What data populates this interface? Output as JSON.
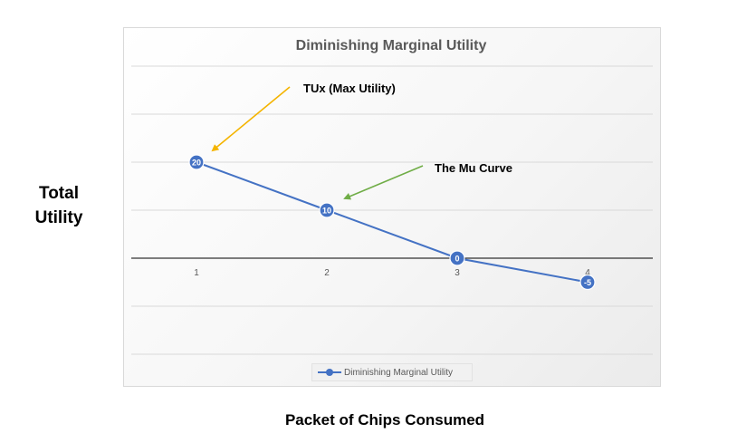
{
  "chart_data": {
    "type": "line",
    "title": "Diminishing Marginal Utility",
    "xlabel": "Packet of Chips Consumed",
    "ylabel": "Total Utility",
    "categories": [
      "1",
      "2",
      "3",
      "4"
    ],
    "series": [
      {
        "name": "Diminishing Marginal Utility",
        "values": [
          20,
          10,
          0,
          -5
        ],
        "color": "#4472c4"
      }
    ],
    "data_labels": [
      "20",
      "10",
      "0",
      "-5"
    ],
    "ylim": [
      -20,
      40
    ],
    "y_gridlines": [
      40,
      30,
      20,
      10,
      0,
      -10,
      -20
    ],
    "grid": true,
    "legend": "bottom",
    "annotations": [
      {
        "text": "TUx (Max Utility)",
        "target_category": "1",
        "target_value": 20,
        "arrow_color": "#f4b400"
      },
      {
        "text": "The Mu Curve",
        "target_category": "2",
        "target_value": 10,
        "arrow_color": "#70ad47"
      }
    ]
  }
}
